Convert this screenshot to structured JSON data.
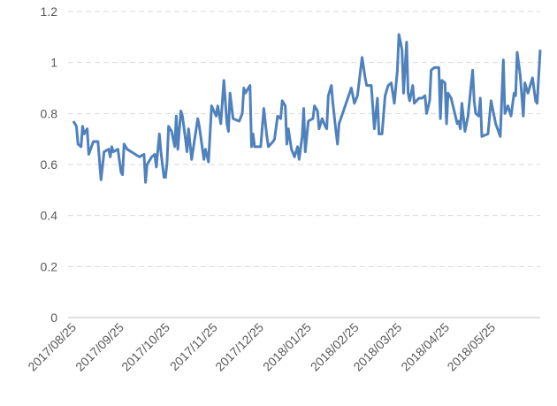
{
  "chart_data": {
    "type": "line",
    "x": [
      "2017/08/25",
      "2017/08/27",
      "2017/08/28",
      "2017/08/30",
      "2017/08/31",
      "2017/09/01",
      "2017/09/03",
      "2017/09/04",
      "2017/09/07",
      "2017/09/10",
      "2017/09/12",
      "2017/09/14",
      "2017/09/17",
      "2017/09/18",
      "2017/09/19",
      "2017/09/20",
      "2017/09/23",
      "2017/09/25",
      "2017/09/26",
      "2017/09/27",
      "2017/09/29",
      "2017/10/07",
      "2017/10/10",
      "2017/10/11",
      "2017/10/12",
      "2017/10/15",
      "2017/10/17",
      "2017/10/18",
      "2017/10/20",
      "2017/10/21",
      "2017/10/23",
      "2017/10/24",
      "2017/10/25",
      "2017/10/26",
      "2017/10/28",
      "2017/10/30",
      "2017/10/31",
      "2017/11/01",
      "2017/11/03",
      "2017/11/04",
      "2017/11/06",
      "2017/11/07",
      "2017/11/08",
      "2017/11/10",
      "2017/11/11",
      "2017/11/14",
      "2017/11/15",
      "2017/11/18",
      "2017/11/19",
      "2017/11/21",
      "2017/11/23",
      "2017/11/26",
      "2017/11/27",
      "2017/11/29",
      "2017/12/01",
      "2017/12/03",
      "2017/12/04",
      "2017/12/05",
      "2017/12/07",
      "2017/12/11",
      "2017/12/13",
      "2017/12/14",
      "2017/12/15",
      "2017/12/18",
      "2017/12/19",
      "2017/12/20",
      "2017/12/21",
      "2017/12/25",
      "2017/12/27",
      "2017/12/29",
      "2017/12/30",
      "2018/01/02",
      "2018/01/03",
      "2018/01/05",
      "2018/01/07",
      "2018/01/08",
      "2018/01/10",
      "2018/01/11",
      "2018/01/12",
      "2018/01/14",
      "2018/01/16",
      "2018/01/18",
      "2018/01/19",
      "2018/01/21",
      "2018/01/22",
      "2018/01/23",
      "2018/01/25",
      "2018/01/28",
      "2018/01/29",
      "2018/01/31",
      "2018/02/01",
      "2018/02/03",
      "2018/02/05",
      "2018/02/06",
      "2018/02/07",
      "2018/02/09",
      "2018/02/10",
      "2018/02/12",
      "2018/02/13",
      "2018/02/14",
      "2018/02/22",
      "2018/02/24",
      "2018/02/26",
      "2018/03/01",
      "2018/03/03",
      "2018/03/04",
      "2018/03/07",
      "2018/03/09",
      "2018/03/11",
      "2018/03/12",
      "2018/03/14",
      "2018/03/16",
      "2018/03/18",
      "2018/03/20",
      "2018/03/22",
      "2018/03/24",
      "2018/03/25",
      "2018/03/27",
      "2018/03/28",
      "2018/03/30",
      "2018/03/31",
      "2018/04/01",
      "2018/04/03",
      "2018/04/04",
      "2018/04/07",
      "2018/04/09",
      "2018/04/11",
      "2018/04/12",
      "2018/04/14",
      "2018/04/15",
      "2018/04/17",
      "2018/04/20",
      "2018/04/21",
      "2018/04/22",
      "2018/04/24",
      "2018/04/25",
      "2018/04/26",
      "2018/04/28",
      "2018/04/30",
      "2018/05/02",
      "2018/05/03",
      "2018/05/04",
      "2018/05/05",
      "2018/05/07",
      "2018/05/09",
      "2018/05/12",
      "2018/05/13",
      "2018/05/14",
      "2018/05/16",
      "2018/05/17",
      "2018/05/18",
      "2018/05/22",
      "2018/05/24",
      "2018/05/27",
      "2018/05/30",
      "2018/06/01",
      "2018/06/02",
      "2018/06/04",
      "2018/06/06",
      "2018/06/08",
      "2018/06/09",
      "2018/06/10",
      "2018/06/12",
      "2018/06/14",
      "2018/06/15",
      "2018/06/17",
      "2018/06/20",
      "2018/06/22",
      "2018/06/23",
      "2018/06/25"
    ],
    "values": [
      0.77,
      0.75,
      0.68,
      0.67,
      0.75,
      0.72,
      0.74,
      0.64,
      0.69,
      0.69,
      0.54,
      0.65,
      0.66,
      0.63,
      0.67,
      0.65,
      0.66,
      0.57,
      0.56,
      0.68,
      0.66,
      0.63,
      0.64,
      0.53,
      0.6,
      0.63,
      0.64,
      0.59,
      0.72,
      0.65,
      0.55,
      0.55,
      0.61,
      0.75,
      0.73,
      0.67,
      0.79,
      0.66,
      0.81,
      0.79,
      0.7,
      0.65,
      0.74,
      0.62,
      0.66,
      0.78,
      0.75,
      0.62,
      0.66,
      0.61,
      0.83,
      0.79,
      0.83,
      0.76,
      0.93,
      0.76,
      0.73,
      0.88,
      0.78,
      0.77,
      0.8,
      0.9,
      0.88,
      0.91,
      0.67,
      0.72,
      0.67,
      0.67,
      0.82,
      0.71,
      0.67,
      0.69,
      0.7,
      0.79,
      0.78,
      0.85,
      0.83,
      0.68,
      0.74,
      0.66,
      0.63,
      0.67,
      0.62,
      0.71,
      0.82,
      0.65,
      0.77,
      0.78,
      0.83,
      0.81,
      0.74,
      0.78,
      0.75,
      0.74,
      0.87,
      0.91,
      0.84,
      0.73,
      0.68,
      0.76,
      0.9,
      0.84,
      0.87,
      1.02,
      0.94,
      0.91,
      0.91,
      0.74,
      0.86,
      0.72,
      0.72,
      0.87,
      0.91,
      0.92,
      0.84,
      0.97,
      1.11,
      1.05,
      0.88,
      1.08,
      0.88,
      0.85,
      0.91,
      0.84,
      0.86,
      0.86,
      0.87,
      0.8,
      0.85,
      0.97,
      0.98,
      0.98,
      0.78,
      0.93,
      0.92,
      0.76,
      0.88,
      0.86,
      0.81,
      0.76,
      0.77,
      0.74,
      0.84,
      0.73,
      0.79,
      0.97,
      0.85,
      0.8,
      0.79,
      0.86,
      0.71,
      0.72,
      0.85,
      0.76,
      0.71,
      1.01,
      0.8,
      0.83,
      0.79,
      0.88,
      0.87,
      1.04,
      0.95,
      0.79,
      0.92,
      0.88,
      0.94,
      0.85,
      0.84,
      1.05
    ],
    "color": "#4f81bd",
    "xlim": [
      "2017/08/25",
      "2018/06/25"
    ],
    "xticks": [
      "2017/08/25",
      "2017/09/25",
      "2017/10/25",
      "2017/11/25",
      "2017/12/25",
      "2018/01/25",
      "2018/02/25",
      "2018/03/25",
      "2018/04/25",
      "2018/05/25"
    ],
    "ylim": [
      0,
      1.2
    ],
    "yticks": [
      0,
      0.2,
      0.4,
      0.6,
      0.8,
      1,
      1.2
    ],
    "grid": true
  }
}
